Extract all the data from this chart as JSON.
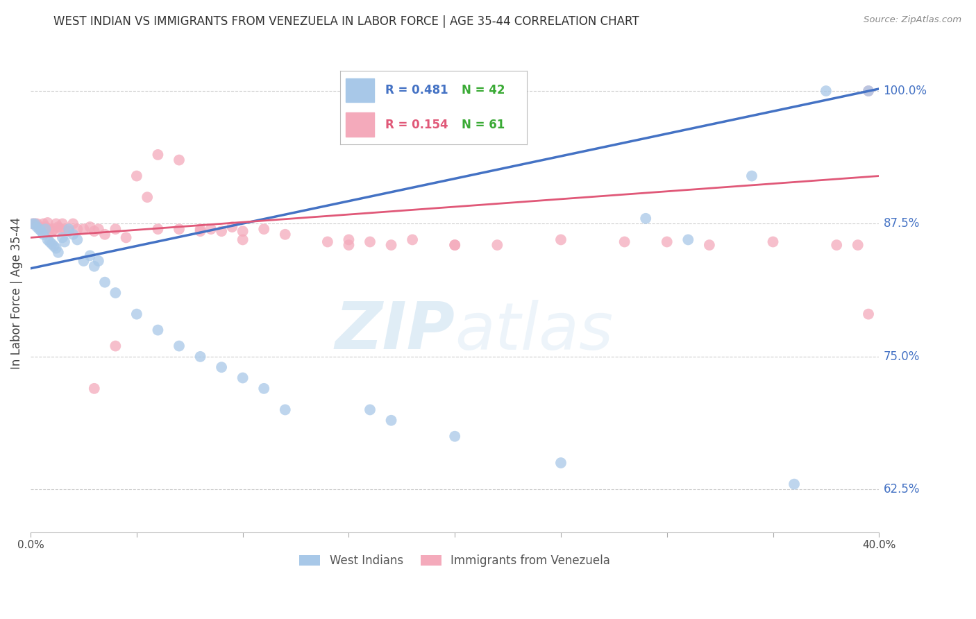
{
  "title": "WEST INDIAN VS IMMIGRANTS FROM VENEZUELA IN LABOR FORCE | AGE 35-44 CORRELATION CHART",
  "source": "Source: ZipAtlas.com",
  "ylabel": "In Labor Force | Age 35-44",
  "xlim": [
    0.0,
    0.4
  ],
  "ylim": [
    0.585,
    1.035
  ],
  "xticks": [
    0.0,
    0.05,
    0.1,
    0.15,
    0.2,
    0.25,
    0.3,
    0.35,
    0.4
  ],
  "xticklabels": [
    "0.0%",
    "",
    "",
    "",
    "",
    "",
    "",
    "",
    "40.0%"
  ],
  "yticks_right": [
    1.0,
    0.875,
    0.75,
    0.625
  ],
  "ytick_labels_right": [
    "100.0%",
    "87.5%",
    "75.0%",
    "62.5%"
  ],
  "blue_color": "#A8C8E8",
  "pink_color": "#F4AABB",
  "blue_line_color": "#4472C4",
  "pink_line_color": "#E05878",
  "legend_blue_R": "R = 0.481",
  "legend_blue_N": "N = 42",
  "legend_pink_R": "R = 0.154",
  "legend_pink_N": "N = 61",
  "watermark_zip": "ZIP",
  "watermark_atlas": "atlas",
  "bottom_legend_blue": "West Indians",
  "bottom_legend_pink": "Immigrants from Venezuela",
  "blue_x": [
    0.001,
    0.002,
    0.003,
    0.004,
    0.005,
    0.006,
    0.007,
    0.008,
    0.009,
    0.01,
    0.011,
    0.012,
    0.013,
    0.015,
    0.016,
    0.018,
    0.02,
    0.022,
    0.025,
    0.028,
    0.03,
    0.032,
    0.035,
    0.04,
    0.05,
    0.06,
    0.07,
    0.08,
    0.09,
    0.1,
    0.11,
    0.12,
    0.16,
    0.17,
    0.2,
    0.25,
    0.29,
    0.31,
    0.34,
    0.36,
    0.375,
    0.395
  ],
  "blue_y": [
    0.875,
    0.875,
    0.872,
    0.87,
    0.868,
    0.865,
    0.87,
    0.86,
    0.858,
    0.856,
    0.854,
    0.852,
    0.848,
    0.862,
    0.858,
    0.87,
    0.865,
    0.86,
    0.84,
    0.845,
    0.835,
    0.84,
    0.82,
    0.81,
    0.79,
    0.775,
    0.76,
    0.75,
    0.74,
    0.73,
    0.72,
    0.7,
    0.7,
    0.69,
    0.675,
    0.65,
    0.88,
    0.86,
    0.92,
    0.63,
    1.0,
    1.0
  ],
  "pink_x": [
    0.001,
    0.002,
    0.003,
    0.004,
    0.005,
    0.006,
    0.007,
    0.008,
    0.009,
    0.01,
    0.011,
    0.012,
    0.013,
    0.014,
    0.015,
    0.016,
    0.018,
    0.02,
    0.022,
    0.025,
    0.028,
    0.03,
    0.032,
    0.035,
    0.04,
    0.045,
    0.05,
    0.055,
    0.06,
    0.07,
    0.08,
    0.085,
    0.09,
    0.095,
    0.1,
    0.11,
    0.12,
    0.14,
    0.15,
    0.16,
    0.17,
    0.18,
    0.2,
    0.22,
    0.25,
    0.28,
    0.3,
    0.32,
    0.35,
    0.38,
    0.39,
    0.395,
    0.06,
    0.07,
    0.08,
    0.15,
    0.2,
    0.1,
    0.03,
    0.04,
    0.395
  ],
  "pink_y": [
    0.875,
    0.875,
    0.875,
    0.872,
    0.87,
    0.875,
    0.872,
    0.876,
    0.87,
    0.868,
    0.87,
    0.875,
    0.872,
    0.87,
    0.875,
    0.87,
    0.868,
    0.875,
    0.87,
    0.87,
    0.872,
    0.868,
    0.87,
    0.865,
    0.87,
    0.862,
    0.92,
    0.9,
    0.94,
    0.935,
    0.87,
    0.87,
    0.868,
    0.872,
    0.868,
    0.87,
    0.865,
    0.858,
    0.86,
    0.858,
    0.855,
    0.86,
    0.855,
    0.855,
    0.86,
    0.858,
    0.858,
    0.855,
    0.858,
    0.855,
    0.855,
    1.0,
    0.87,
    0.87,
    0.868,
    0.855,
    0.855,
    0.86,
    0.72,
    0.76,
    0.79
  ],
  "blue_line_x0": 0.0,
  "blue_line_y0": 0.833,
  "blue_line_x1": 0.4,
  "blue_line_y1": 1.002,
  "pink_line_x0": 0.0,
  "pink_line_y0": 0.862,
  "pink_line_x1": 0.4,
  "pink_line_y1": 0.92
}
